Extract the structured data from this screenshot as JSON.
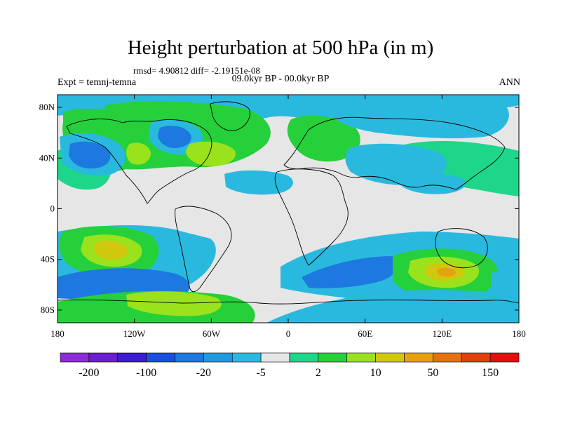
{
  "title": "Height perturbation at 500 hPa (in m)",
  "stats": "rmsd= 4.90812 diff= -2.19151e-08",
  "experiment": "Expt = temnj-temna",
  "period": "09.0kyr BP - 00.0kyr BP",
  "season": "ANN",
  "map": {
    "lon_range": [
      -180,
      180
    ],
    "lat_range": [
      -90,
      90
    ],
    "lat_ticks": [
      {
        "value": 80,
        "label": "80N"
      },
      {
        "value": 40,
        "label": "40N"
      },
      {
        "value": 0,
        "label": "0"
      },
      {
        "value": -40,
        "label": "40S"
      },
      {
        "value": -80,
        "label": "80S"
      }
    ],
    "lon_ticks": [
      {
        "value": -180,
        "label": "180"
      },
      {
        "value": -120,
        "label": "120W"
      },
      {
        "value": -60,
        "label": "60W"
      },
      {
        "value": 0,
        "label": "0"
      },
      {
        "value": 60,
        "label": "60E"
      },
      {
        "value": 120,
        "label": "120E"
      },
      {
        "value": 180,
        "label": "180"
      }
    ],
    "background_color": "#e6e6e6"
  },
  "colorbar": {
    "colors": [
      "#8c2bd9",
      "#6a1fd0",
      "#3c1ad6",
      "#1c4fe0",
      "#1d78e0",
      "#1f9ae0",
      "#2ab9de",
      "#e6e6e6",
      "#1ed68a",
      "#25d03a",
      "#9ae21c",
      "#cfc80e",
      "#e3a20e",
      "#e6720c",
      "#e3400e",
      "#e01010"
    ],
    "labels": [
      {
        "index": 1,
        "text": "-200"
      },
      {
        "index": 3,
        "text": "-100"
      },
      {
        "index": 5,
        "text": "-20"
      },
      {
        "index": 7,
        "text": "-5"
      },
      {
        "index": 9,
        "text": "2"
      },
      {
        "index": 11,
        "text": "10"
      },
      {
        "index": 13,
        "text": "50"
      },
      {
        "index": 15,
        "text": "150"
      }
    ]
  }
}
